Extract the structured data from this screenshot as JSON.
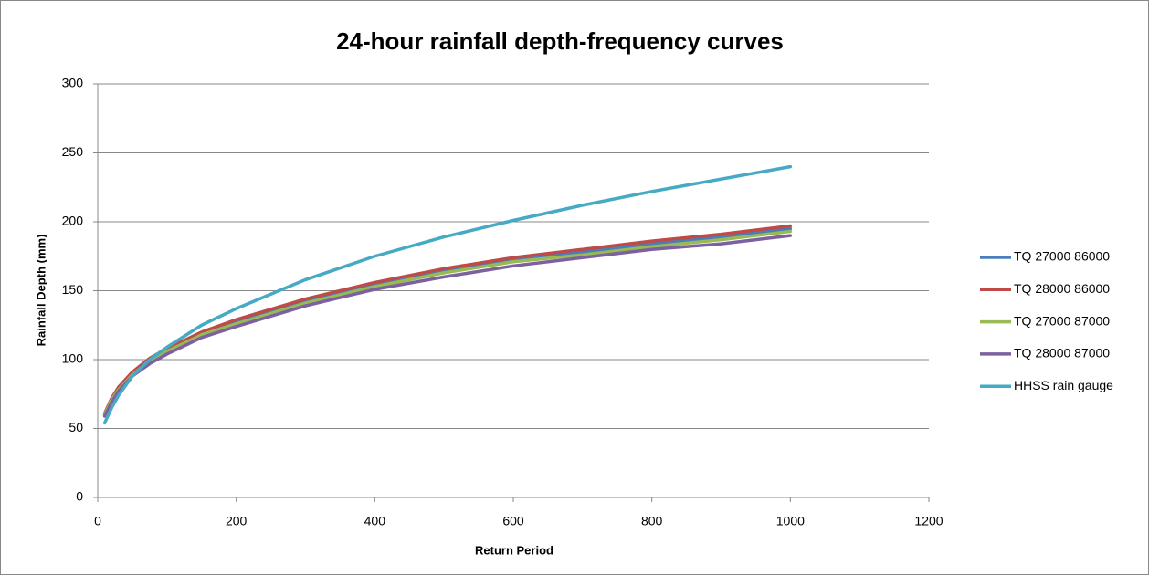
{
  "chart_data": {
    "type": "line",
    "title": "24-hour rainfall depth-frequency curves",
    "x_label": "Return Period",
    "y_label": "Rainfall  Depth (mm)",
    "x": [
      10,
      20,
      30,
      50,
      75,
      100,
      150,
      200,
      300,
      400,
      500,
      600,
      700,
      800,
      900,
      1000
    ],
    "series": [
      {
        "name": "TQ 27000 86000",
        "color": "#4a7ebb",
        "values": [
          60,
          71,
          79,
          90,
          100,
          107,
          119,
          128,
          143,
          154,
          164,
          172,
          178,
          184,
          189,
          195
        ]
      },
      {
        "name": "TQ 28000 86000",
        "color": "#be4b48",
        "values": [
          61,
          72,
          80,
          91,
          101,
          108,
          120,
          129,
          144,
          156,
          166,
          174,
          180,
          186,
          191,
          197
        ]
      },
      {
        "name": "TQ 27000 87000",
        "color": "#98b954",
        "values": [
          60,
          71,
          78,
          89,
          99,
          106,
          118,
          126,
          141,
          153,
          163,
          171,
          176,
          182,
          187,
          193
        ]
      },
      {
        "name": "TQ 28000 87000",
        "color": "#7d60a0",
        "values": [
          59,
          69,
          77,
          88,
          97,
          104,
          116,
          124,
          139,
          151,
          160,
          168,
          174,
          180,
          184,
          190
        ]
      },
      {
        "name": "HHSS rain gauge",
        "color": "#46aac5",
        "values": [
          54,
          65,
          74,
          88,
          100,
          109,
          125,
          137,
          158,
          175,
          189,
          201,
          212,
          222,
          231,
          240
        ]
      }
    ],
    "xlim": [
      0,
      1200
    ],
    "xticks": [
      0,
      200,
      400,
      600,
      800,
      1000,
      1200
    ],
    "ylim": [
      0,
      300
    ],
    "yticks": [
      0,
      50,
      100,
      150,
      200,
      250,
      300
    ],
    "grid": true,
    "legend": "right"
  }
}
